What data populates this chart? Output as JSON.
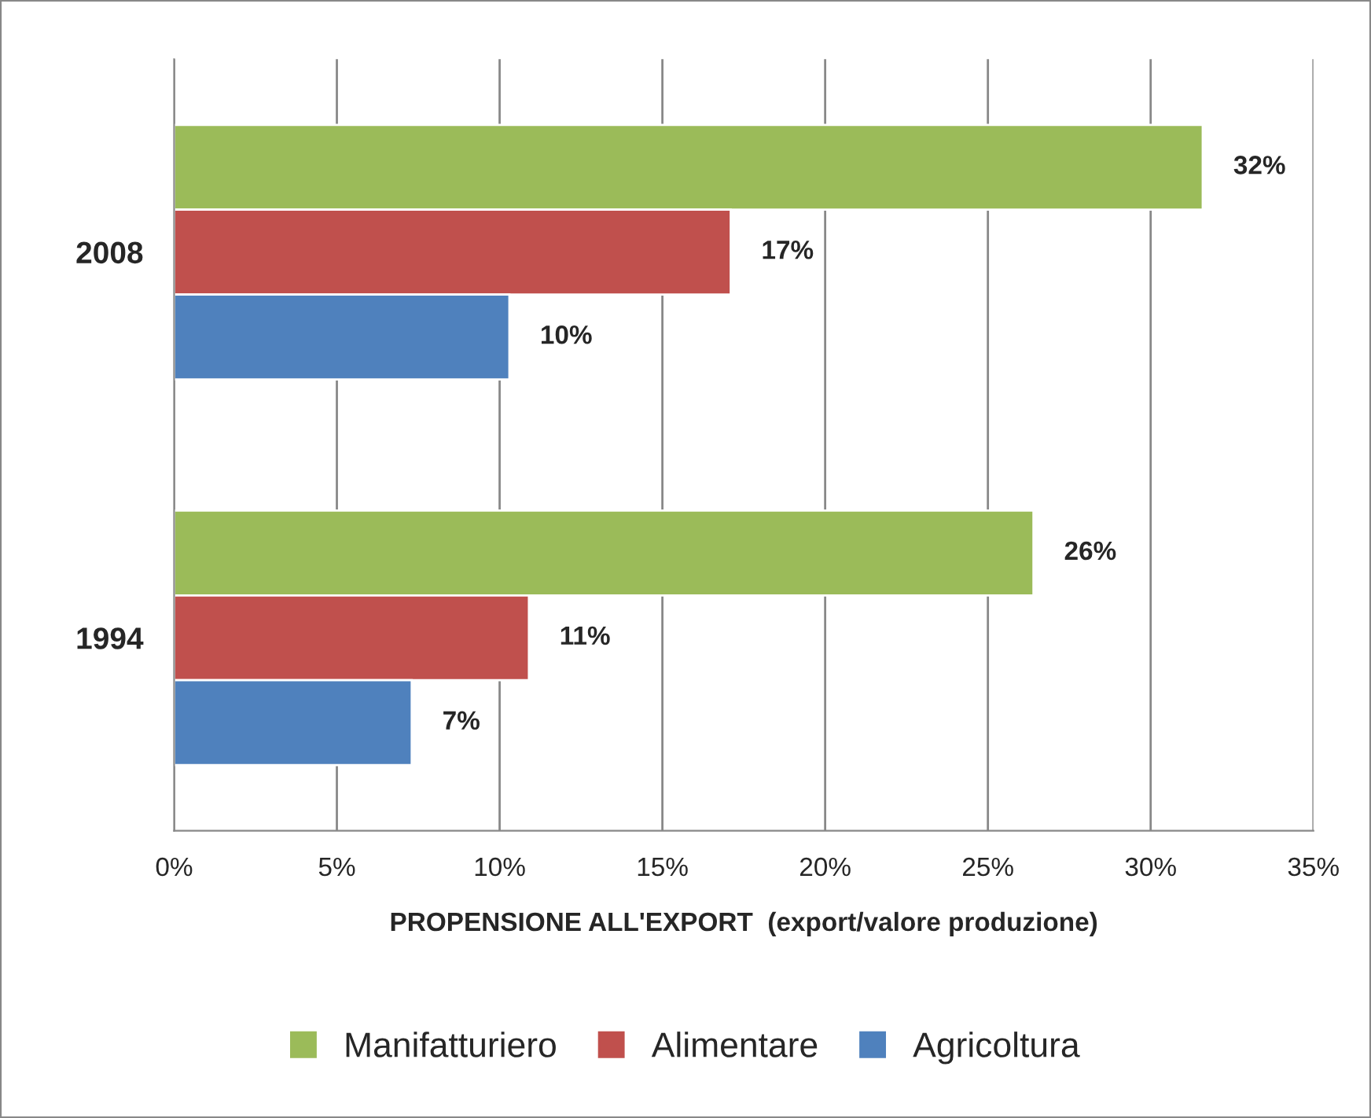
{
  "chart_data": {
    "type": "bar",
    "orientation": "horizontal",
    "xlabel": "PROPENSIONE ALL'EXPORT  (export/valore produzione)",
    "categories": [
      "2008",
      "1994"
    ],
    "series": [
      {
        "name": "Manifatturiero",
        "color": "#9bbb59",
        "values": [
          31.6,
          26.4
        ],
        "value_labels": [
          "32%",
          "26%"
        ]
      },
      {
        "name": "Alimentare",
        "color": "#c0504d",
        "values": [
          17.1,
          10.9
        ],
        "value_labels": [
          "17%",
          "11%"
        ]
      },
      {
        "name": "Agricoltura",
        "color": "#4f81bd",
        "values": [
          10.3,
          7.3
        ],
        "value_labels": [
          "10%",
          "7%"
        ]
      }
    ],
    "xlim": [
      0,
      35
    ],
    "xticks": [
      {
        "value": 0,
        "label": "0%"
      },
      {
        "value": 5,
        "label": "5%"
      },
      {
        "value": 10,
        "label": "10%"
      },
      {
        "value": 15,
        "label": "15%"
      },
      {
        "value": 20,
        "label": "20%"
      },
      {
        "value": 25,
        "label": "25%"
      },
      {
        "value": 30,
        "label": "30%"
      },
      {
        "value": 35,
        "label": "35%"
      }
    ],
    "grid": "x",
    "legend": "bottom"
  }
}
